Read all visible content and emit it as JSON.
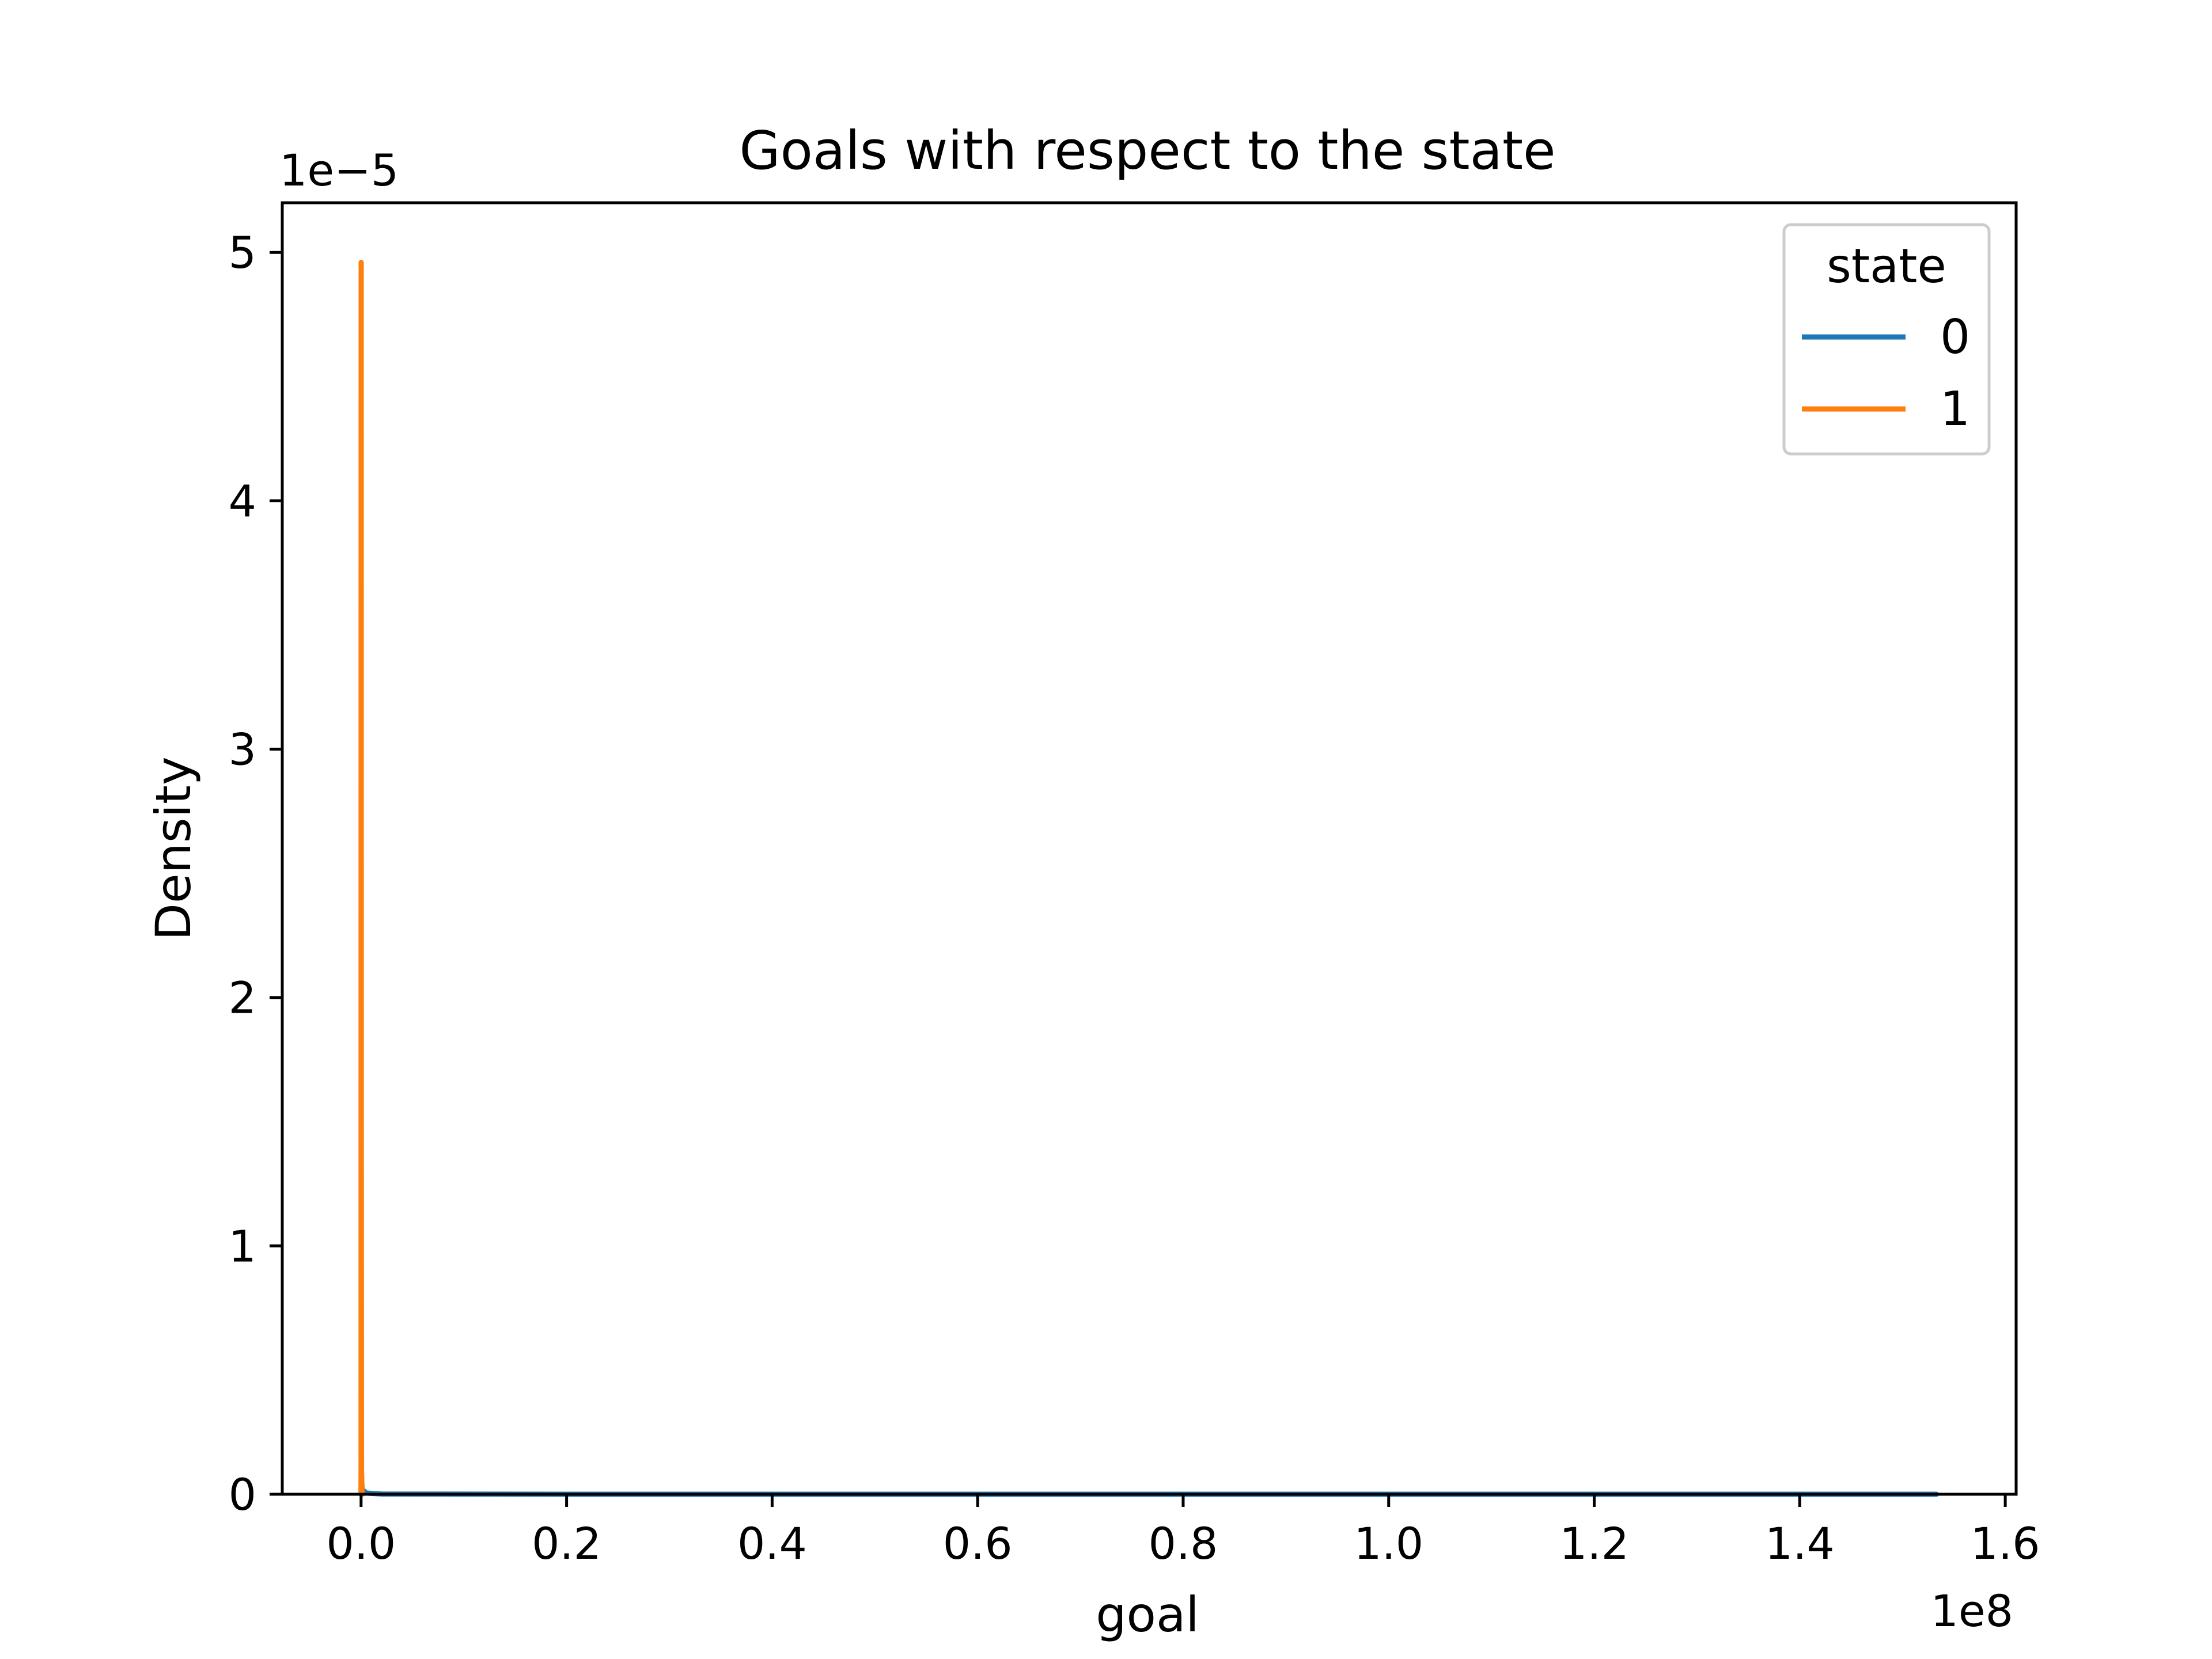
{
  "chart_data": {
    "type": "line",
    "title": "Goals with respect to the state",
    "xlabel": "goal",
    "ylabel": "Density",
    "x_offset_text": "1e8",
    "y_offset_text": "1e−5",
    "xlim": [
      -0.0767,
      1.6106
    ],
    "ylim": [
      0,
      5.2
    ],
    "x_ticks": [
      0.0,
      0.2,
      0.4,
      0.6,
      0.8,
      1.0,
      1.2,
      1.4,
      1.6
    ],
    "x_tick_labels": [
      "0.0",
      "0.2",
      "0.4",
      "0.6",
      "0.8",
      "1.0",
      "1.2",
      "1.4",
      "1.6"
    ],
    "y_ticks": [
      0,
      1,
      2,
      3,
      4,
      5
    ],
    "y_tick_labels": [
      "0",
      "1",
      "2",
      "3",
      "4",
      "5"
    ],
    "grid": false,
    "legend": {
      "title": "state",
      "position": "top-right",
      "entries": [
        "0",
        "1"
      ]
    },
    "series": [
      {
        "name": "0",
        "color": "#1f77b4",
        "x": [
          0.0,
          0.0001,
          0.0005,
          0.001,
          0.005,
          0.02,
          0.2,
          0.6,
          1.0,
          1.4,
          1.533
        ],
        "y": [
          0.0,
          0.12,
          0.06,
          0.02,
          0.005,
          0.001,
          0.0,
          0.0,
          0.0,
          0.0,
          0.0
        ]
      },
      {
        "name": "1",
        "color": "#ff7f0e",
        "x": [
          0.0,
          2e-05,
          5e-05,
          9e-05,
          0.00013,
          0.0002,
          0.0004,
          0.001
        ],
        "y": [
          0.0,
          1.5,
          4.2,
          4.96,
          4.2,
          1.5,
          0.1,
          0.0
        ]
      }
    ]
  }
}
